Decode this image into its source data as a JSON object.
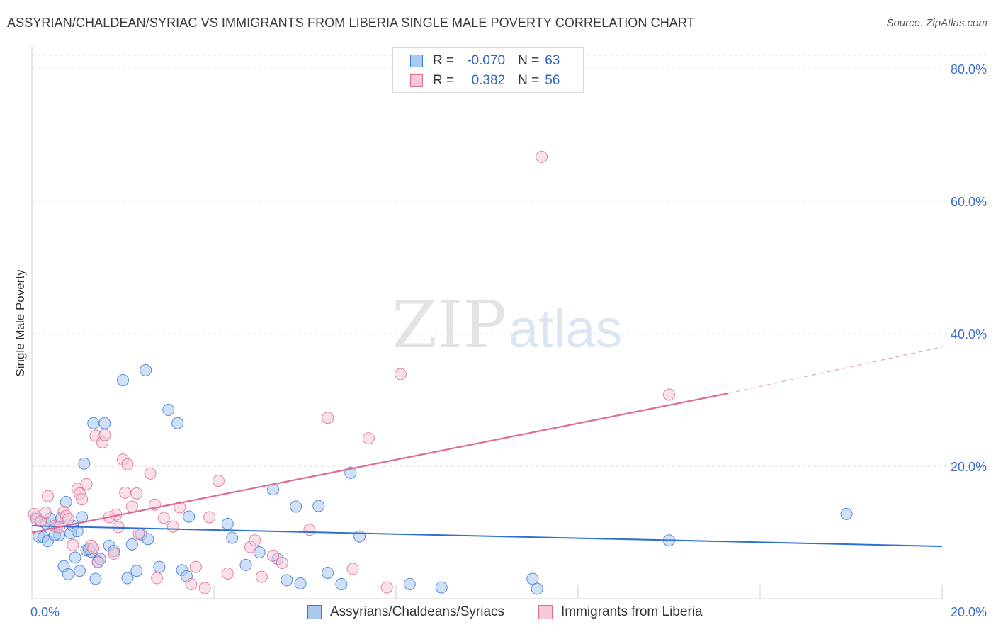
{
  "title": "ASSYRIAN/CHALDEAN/SYRIAC VS IMMIGRANTS FROM LIBERIA SINGLE MALE POVERTY CORRELATION CHART",
  "source": "Source: ZipAtlas.com",
  "watermark": {
    "zip": "ZIP",
    "atlas": "atlas"
  },
  "legend": {
    "rows": [
      {
        "r_label": "R =",
        "r_value": "-0.070",
        "n_label": "N =",
        "n_value": "63"
      },
      {
        "r_label": "R =",
        "r_value": "0.382",
        "n_label": "N =",
        "n_value": "56"
      }
    ]
  },
  "colors": {
    "blue": "#3b7ad6",
    "blue_fill": "#a9c8f0",
    "pink": "#e06a95",
    "pink_fill": "#f6b9cc",
    "axis_text": "#3b6fd1",
    "grid": "#dddddd"
  },
  "chart_data": {
    "type": "scatter",
    "title": "ASSYRIAN/CHALDEAN/SYRIAC VS IMMIGRANTS FROM LIBERIA SINGLE MALE POVERTY CORRELATION CHART",
    "xlabel": "",
    "ylabel": "Single Male Poverty",
    "xlim": [
      0,
      20
    ],
    "ylim": [
      0,
      80
    ],
    "x_tick_labels": [
      "0.0%",
      "20.0%"
    ],
    "y_ticks": [
      20,
      40,
      60,
      80
    ],
    "y_tick_labels": [
      "20.0%",
      "40.0%",
      "60.0%",
      "80.0%"
    ],
    "grid": true,
    "series": [
      {
        "name": "Assyrians/Chaldeans/Syriacs",
        "color": "#3b7ad6",
        "r": -0.07,
        "n": 63,
        "trend": {
          "x0": 0,
          "y0": 11.0,
          "x1": 20,
          "y1": 7.9
        },
        "points": [
          [
            0.1,
            12.3
          ],
          [
            0.15,
            9.4
          ],
          [
            0.25,
            9.3
          ],
          [
            0.3,
            11.4
          ],
          [
            0.35,
            8.7
          ],
          [
            0.4,
            12.1
          ],
          [
            0.55,
            10.8
          ],
          [
            0.6,
            9.6
          ],
          [
            0.65,
            12.2
          ],
          [
            0.7,
            4.9
          ],
          [
            0.75,
            14.6
          ],
          [
            0.8,
            3.7
          ],
          [
            0.85,
            9.9
          ],
          [
            0.9,
            11.0
          ],
          [
            0.95,
            6.2
          ],
          [
            1.05,
            4.2
          ],
          [
            1.1,
            12.3
          ],
          [
            1.15,
            20.4
          ],
          [
            1.2,
            7.3
          ],
          [
            1.3,
            7.1
          ],
          [
            1.35,
            26.5
          ],
          [
            1.4,
            3.0
          ],
          [
            1.45,
            5.6
          ],
          [
            1.5,
            6.0
          ],
          [
            1.6,
            26.5
          ],
          [
            1.7,
            8.0
          ],
          [
            1.8,
            7.2
          ],
          [
            2.0,
            33.0
          ],
          [
            2.1,
            3.1
          ],
          [
            2.2,
            8.2
          ],
          [
            2.3,
            4.2
          ],
          [
            2.4,
            9.7
          ],
          [
            2.5,
            34.5
          ],
          [
            2.55,
            9.0
          ],
          [
            2.8,
            4.8
          ],
          [
            3.0,
            28.5
          ],
          [
            3.2,
            26.5
          ],
          [
            3.3,
            4.3
          ],
          [
            3.4,
            3.4
          ],
          [
            3.45,
            12.4
          ],
          [
            4.3,
            11.3
          ],
          [
            4.4,
            9.2
          ],
          [
            4.7,
            5.1
          ],
          [
            5.0,
            7.0
          ],
          [
            5.3,
            16.5
          ],
          [
            5.4,
            6.0
          ],
          [
            5.6,
            2.8
          ],
          [
            5.8,
            13.9
          ],
          [
            5.9,
            2.3
          ],
          [
            6.3,
            14.0
          ],
          [
            6.5,
            3.9
          ],
          [
            6.8,
            2.2
          ],
          [
            7.0,
            19.0
          ],
          [
            7.2,
            9.4
          ],
          [
            8.3,
            2.2
          ],
          [
            9.0,
            1.7
          ],
          [
            11.0,
            3.0
          ],
          [
            11.1,
            1.5
          ],
          [
            14.0,
            8.8
          ],
          [
            17.9,
            12.8
          ],
          [
            0.5,
            9.6
          ],
          [
            1.0,
            10.2
          ],
          [
            1.25,
            7.5
          ]
        ]
      },
      {
        "name": "Immigrants from Liberia",
        "color": "#e06a95",
        "r": 0.382,
        "n": 56,
        "trend": {
          "x0": 0,
          "y0": 10.0,
          "x1": 15.3,
          "y1": 31.0,
          "dashed_to_x": 20,
          "dashed_to_y": 38.0
        },
        "points": [
          [
            0.05,
            12.8
          ],
          [
            0.1,
            12.0
          ],
          [
            0.2,
            11.7
          ],
          [
            0.3,
            13.0
          ],
          [
            0.35,
            15.5
          ],
          [
            0.5,
            11.0
          ],
          [
            0.6,
            10.8
          ],
          [
            0.7,
            13.1
          ],
          [
            0.75,
            12.5
          ],
          [
            0.8,
            12.0
          ],
          [
            0.9,
            8.1
          ],
          [
            1.0,
            16.6
          ],
          [
            1.05,
            15.9
          ],
          [
            1.1,
            15.0
          ],
          [
            1.2,
            17.3
          ],
          [
            1.3,
            8.0
          ],
          [
            1.35,
            7.6
          ],
          [
            1.4,
            24.6
          ],
          [
            1.45,
            5.5
          ],
          [
            1.55,
            23.6
          ],
          [
            1.6,
            24.7
          ],
          [
            1.7,
            12.3
          ],
          [
            1.8,
            6.8
          ],
          [
            1.85,
            12.7
          ],
          [
            1.9,
            10.8
          ],
          [
            2.0,
            21.0
          ],
          [
            2.05,
            16.0
          ],
          [
            2.1,
            20.3
          ],
          [
            2.2,
            13.9
          ],
          [
            2.3,
            15.9
          ],
          [
            2.35,
            9.8
          ],
          [
            2.6,
            18.9
          ],
          [
            2.7,
            14.2
          ],
          [
            2.75,
            3.1
          ],
          [
            2.9,
            12.2
          ],
          [
            3.1,
            10.9
          ],
          [
            3.25,
            13.8
          ],
          [
            3.5,
            2.2
          ],
          [
            3.6,
            4.8
          ],
          [
            3.8,
            1.6
          ],
          [
            3.9,
            12.3
          ],
          [
            4.1,
            17.8
          ],
          [
            4.3,
            3.8
          ],
          [
            4.8,
            7.8
          ],
          [
            4.9,
            8.8
          ],
          [
            5.05,
            3.3
          ],
          [
            5.3,
            6.5
          ],
          [
            5.5,
            5.4
          ],
          [
            6.1,
            10.4
          ],
          [
            6.5,
            27.3
          ],
          [
            7.05,
            4.5
          ],
          [
            7.4,
            24.2
          ],
          [
            7.8,
            1.7
          ],
          [
            8.1,
            33.9
          ],
          [
            11.2,
            66.7
          ],
          [
            14.0,
            30.8
          ]
        ]
      }
    ]
  },
  "bottom_legend": [
    {
      "label": "Assyrians/Chaldeans/Syriacs"
    },
    {
      "label": "Immigrants from Liberia"
    }
  ]
}
